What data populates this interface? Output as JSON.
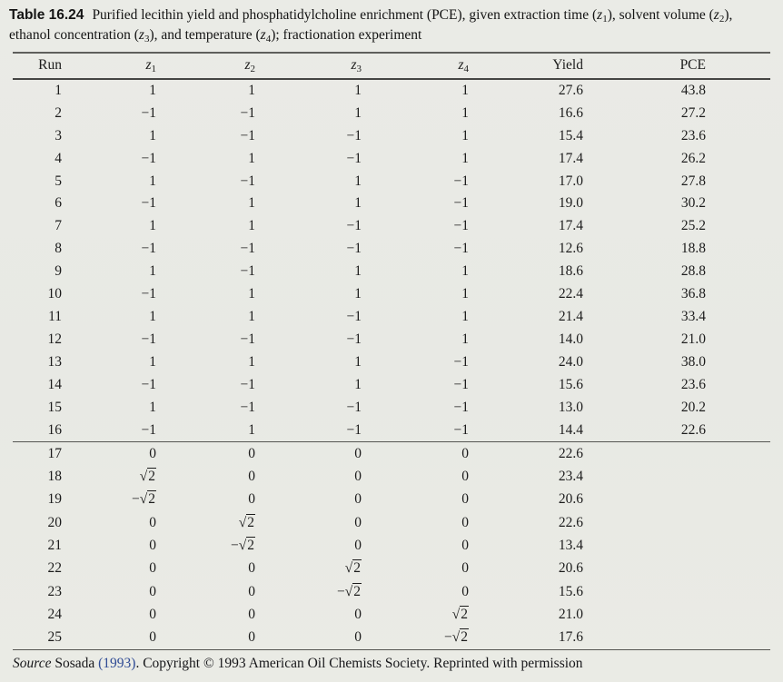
{
  "caption": {
    "label": "Table 16.24",
    "text": "Purified lecithin yield and phosphatidylcholine enrichment (PCE), given extraction time (z_1), solvent volume (z_2), ethanol concentration (z_3), and temperature (z_4); fractionation experiment"
  },
  "table": {
    "columns": [
      "Run",
      "z_1",
      "z_2",
      "z_3",
      "z_4",
      "Yield",
      "PCE"
    ],
    "factorial_rows": [
      [
        "1",
        "1",
        "1",
        "1",
        "1",
        "27.6",
        "43.8"
      ],
      [
        "2",
        "−1",
        "−1",
        "1",
        "1",
        "16.6",
        "27.2"
      ],
      [
        "3",
        "1",
        "−1",
        "−1",
        "1",
        "15.4",
        "23.6"
      ],
      [
        "4",
        "−1",
        "1",
        "−1",
        "1",
        "17.4",
        "26.2"
      ],
      [
        "5",
        "1",
        "−1",
        "1",
        "−1",
        "17.0",
        "27.8"
      ],
      [
        "6",
        "−1",
        "1",
        "1",
        "−1",
        "19.0",
        "30.2"
      ],
      [
        "7",
        "1",
        "1",
        "−1",
        "−1",
        "17.4",
        "25.2"
      ],
      [
        "8",
        "−1",
        "−1",
        "−1",
        "−1",
        "12.6",
        "18.8"
      ],
      [
        "9",
        "1",
        "−1",
        "1",
        "1",
        "18.6",
        "28.8"
      ],
      [
        "10",
        "−1",
        "1",
        "1",
        "1",
        "22.4",
        "36.8"
      ],
      [
        "11",
        "1",
        "1",
        "−1",
        "1",
        "21.4",
        "33.4"
      ],
      [
        "12",
        "−1",
        "−1",
        "−1",
        "1",
        "14.0",
        "21.0"
      ],
      [
        "13",
        "1",
        "1",
        "1",
        "−1",
        "24.0",
        "38.0"
      ],
      [
        "14",
        "−1",
        "−1",
        "1",
        "−1",
        "15.6",
        "23.6"
      ],
      [
        "15",
        "1",
        "−1",
        "−1",
        "−1",
        "13.0",
        "20.2"
      ],
      [
        "16",
        "−1",
        "1",
        "−1",
        "−1",
        "14.4",
        "22.6"
      ]
    ],
    "axial_rows": [
      [
        "17",
        "0",
        "0",
        "0",
        "0",
        "22.6",
        ""
      ],
      [
        "18",
        "√2",
        "0",
        "0",
        "0",
        "23.4",
        ""
      ],
      [
        "19",
        "−√2",
        "0",
        "0",
        "0",
        "20.6",
        ""
      ],
      [
        "20",
        "0",
        "√2",
        "0",
        "0",
        "22.6",
        ""
      ],
      [
        "21",
        "0",
        "−√2",
        "0",
        "0",
        "13.4",
        ""
      ],
      [
        "22",
        "0",
        "0",
        "√2",
        "0",
        "20.6",
        ""
      ],
      [
        "23",
        "0",
        "0",
        "−√2",
        "0",
        "15.6",
        ""
      ],
      [
        "24",
        "0",
        "0",
        "0",
        "√2",
        "21.0",
        ""
      ],
      [
        "25",
        "0",
        "0",
        "0",
        "−√2",
        "17.6",
        ""
      ]
    ]
  },
  "source": {
    "prefix_italic": "Source",
    "before_link": " Sosada ",
    "link": "(1993)",
    "after_link": ". Copyright © 1993 American Oil Chemists Society. Reprinted with permission"
  },
  "colors": {
    "paper_background": "#e9eae5",
    "text": "#1c1c1c",
    "citation_link": "#2e4a94",
    "rule": "#555552"
  }
}
